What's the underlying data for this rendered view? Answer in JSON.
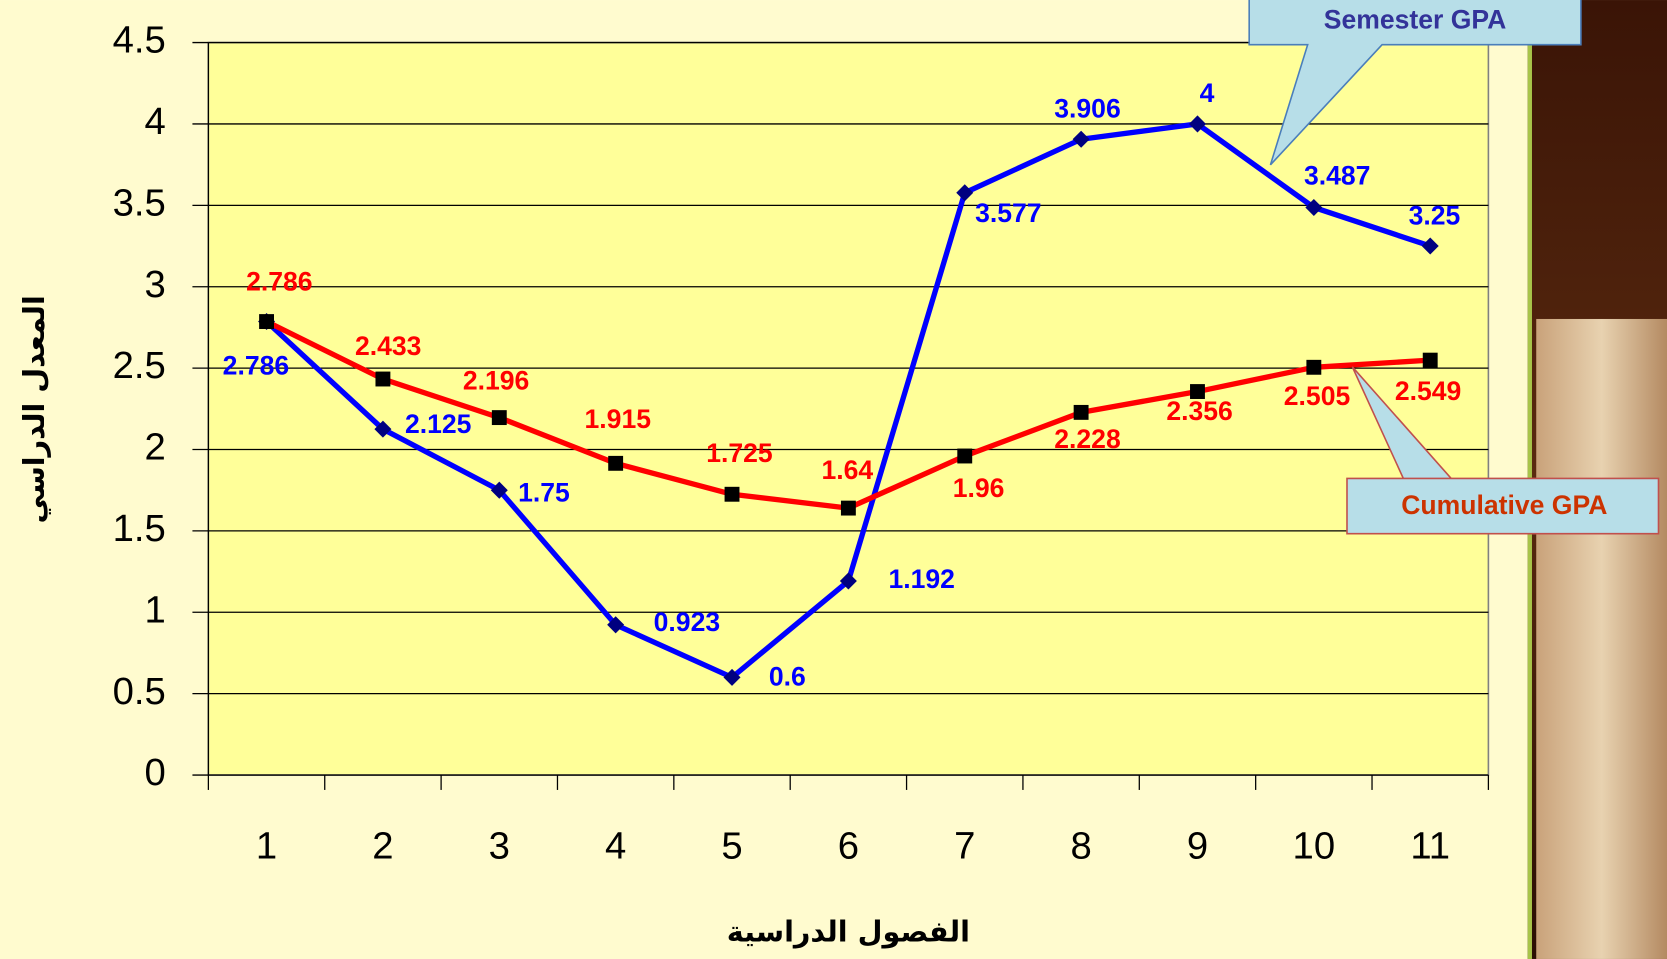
{
  "chart_data": {
    "type": "line",
    "categories": [
      "1",
      "2",
      "3",
      "4",
      "5",
      "6",
      "7",
      "8",
      "9",
      "10",
      "11"
    ],
    "series": [
      {
        "name": "Semester GPA",
        "color": "#0000ff",
        "marker": "diamond",
        "values": [
          2.786,
          2.125,
          1.75,
          0.923,
          0.6,
          1.192,
          3.577,
          3.906,
          4,
          3.487,
          3.25
        ]
      },
      {
        "name": "Cumulative GPA",
        "color": "#ff0000",
        "marker": "square",
        "values": [
          2.786,
          2.433,
          2.196,
          1.915,
          1.725,
          1.64,
          1.96,
          2.228,
          2.356,
          2.505,
          2.549
        ]
      }
    ],
    "ylim": [
      0,
      4.5
    ],
    "yticks": [
      0,
      0.5,
      1,
      1.5,
      2,
      2.5,
      3,
      3.5,
      4,
      4.5
    ],
    "grid": true,
    "ylabel": "المعدل الدراسي",
    "xlabel": "الفصول الدراسية"
  }
}
